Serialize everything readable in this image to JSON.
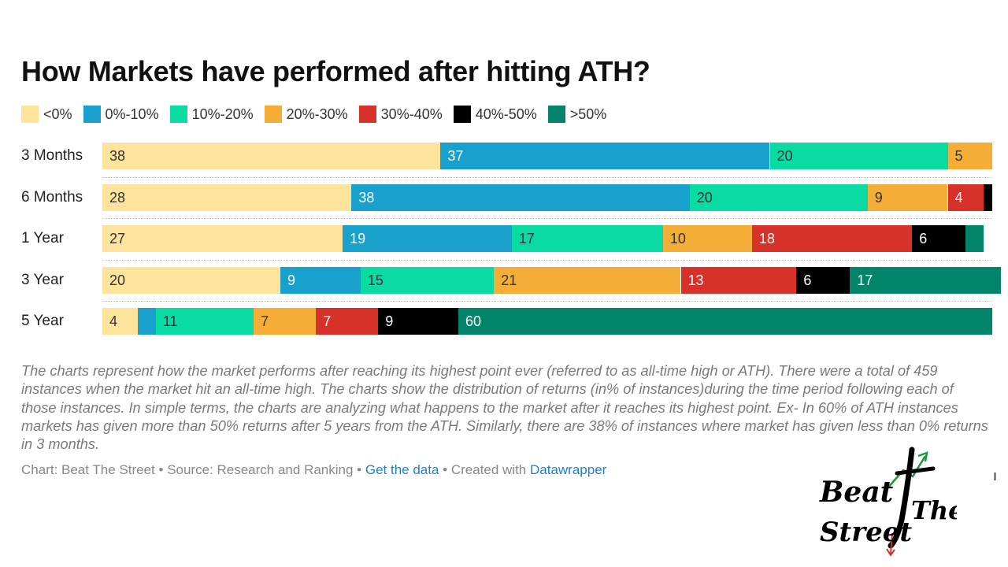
{
  "title": "How Markets have performed after hitting ATH?",
  "chart_data": {
    "type": "bar",
    "orientation": "horizontal",
    "stacked": true,
    "title": "How Markets have performed after hitting ATH?",
    "categories": [
      "3 Months",
      "6 Months",
      "1 Year",
      "3 Year",
      "5 Year"
    ],
    "legend": [
      {
        "label": "<0%",
        "color": "#fde39c"
      },
      {
        "label": "0%-10%",
        "color": "#18a1cd"
      },
      {
        "label": "10%-20%",
        "color": "#09dba3"
      },
      {
        "label": "20%-30%",
        "color": "#f4ae38"
      },
      {
        "label": "30%-40%",
        "color": "#d6322a"
      },
      {
        "label": "40%-50%",
        "color": "#000000"
      },
      {
        "label": ">50%",
        "color": "#01846a"
      }
    ],
    "series": [
      {
        "name": "<0%",
        "values": [
          38,
          28,
          27,
          20,
          4
        ]
      },
      {
        "name": "0%-10%",
        "values": [
          37,
          38,
          19,
          9,
          2
        ]
      },
      {
        "name": "10%-20%",
        "values": [
          20,
          20,
          17,
          15,
          11
        ]
      },
      {
        "name": "20%-30%",
        "values": [
          5,
          9,
          10,
          21,
          7
        ]
      },
      {
        "name": "30%-40%",
        "values": [
          0,
          4,
          18,
          13,
          7
        ]
      },
      {
        "name": "40%-50%",
        "values": [
          0,
          1,
          6,
          6,
          9
        ]
      },
      {
        "name": ">50%",
        "values": [
          0,
          0,
          2,
          17,
          60
        ]
      }
    ],
    "labels": [
      [
        "38",
        "37",
        "20",
        "5",
        "",
        "",
        ""
      ],
      [
        "28",
        "38",
        "20",
        "9",
        "4",
        "",
        ""
      ],
      [
        "27",
        "19",
        "17",
        "10",
        "18",
        "6",
        ""
      ],
      [
        "20",
        "9",
        "15",
        "21",
        "13",
        "6",
        "17"
      ],
      [
        "4",
        "",
        "11",
        "7",
        "7",
        "9",
        "60"
      ]
    ],
    "xlim": [
      0,
      100
    ]
  },
  "description": "The charts represent how the market performs after reaching its highest point ever (referred to as all-time high or ATH). There were a total of 459 instances when the market hit an all-time high. The charts show the distribution of returns (in% of instances)during the time period following each of those instances. In simple terms, the charts are analyzing what happens to the market after it reaches its highest point. Ex- In 60% of ATH instances markets has given more than 50% returns after 5 years from the ATH. Similarly, there are 38% of instances where market has given less than 0% returns in 3 months.",
  "footer": {
    "chart_credit": "Chart: Beat The Street",
    "sep1": " • ",
    "source": "Source: Research and Ranking",
    "sep2": " • ",
    "get_data": "Get the data",
    "sep3": " • ",
    "created_with": "Created with ",
    "datawrapper": "Datawrapper"
  },
  "logo": {
    "word1": "Beat",
    "word2": "The",
    "word3": "Street"
  }
}
